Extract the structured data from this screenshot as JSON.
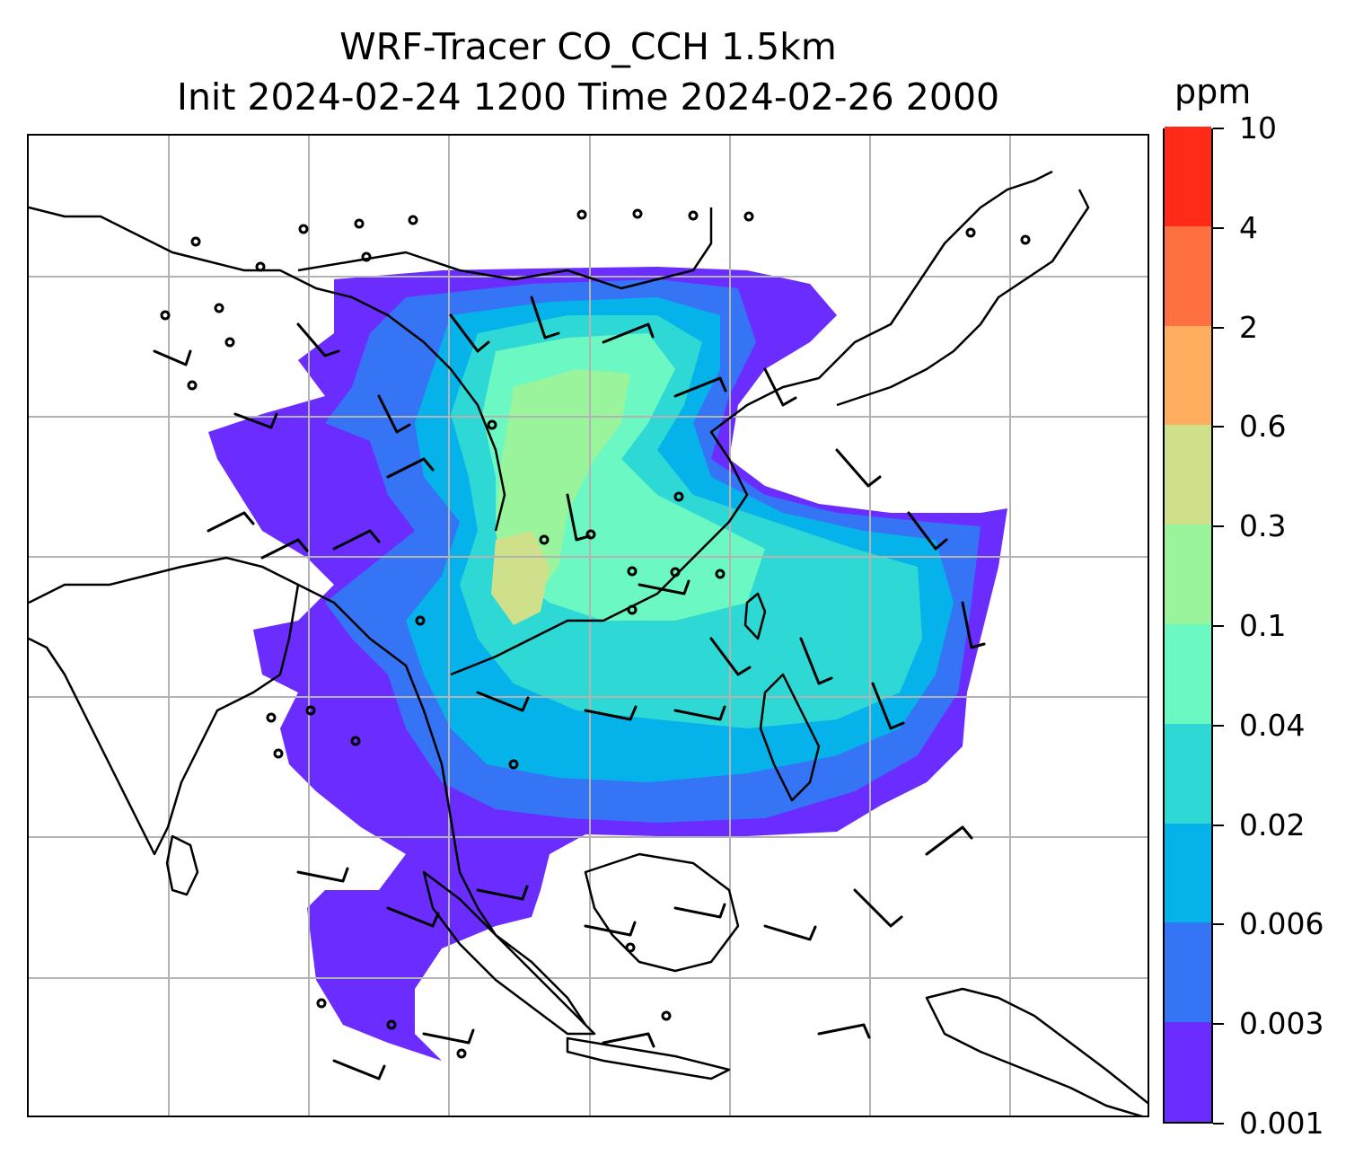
{
  "title": {
    "line1": "WRF-Tracer CO_CCH 1.5km",
    "line2": "Init 2024-02-24 1200 Time 2024-02-26 2000"
  },
  "colorbar": {
    "unit": "ppm",
    "levels": [
      "0.001",
      "0.003",
      "0.006",
      "0.02",
      "0.04",
      "0.1",
      "0.3",
      "0.6",
      "2",
      "4",
      "10"
    ],
    "colors": [
      "#6a2cff",
      "#3575f5",
      "#05b3ea",
      "#2ed8d4",
      "#6cf8c3",
      "#9af49b",
      "#cfe08a",
      "#ffad5f",
      "#ff7040",
      "#ff2a17"
    ]
  },
  "map": {
    "gridline_color": "#b3b3b3",
    "coastline_color": "#000000"
  }
}
